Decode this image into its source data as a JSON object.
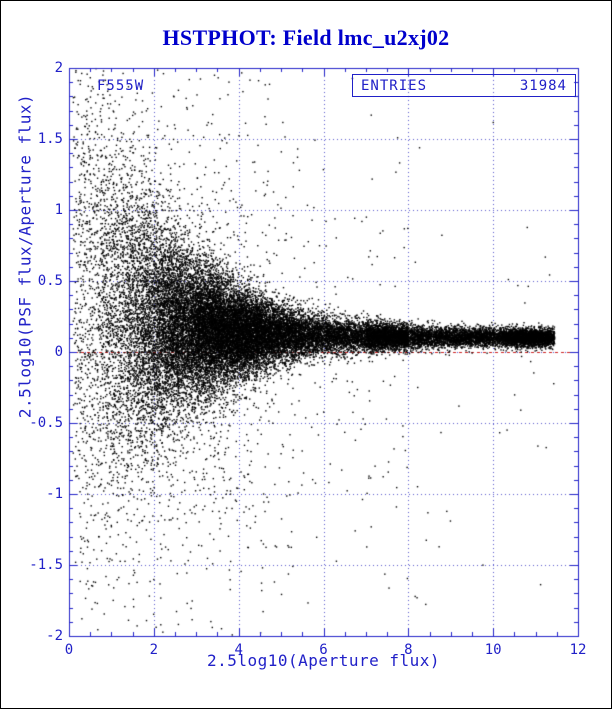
{
  "title": "HSTPHOT: Field lmc_u2xj02",
  "annotations": {
    "filter_label": "F555W",
    "stats_box": {
      "label": "ENTRIES",
      "value": "31984"
    }
  },
  "colors": {
    "title": "#0000cc",
    "axis": "#2121c8",
    "grid": "#5555cc",
    "points": "#000000",
    "zero_line": "#cc2222",
    "background": "#ffffff"
  },
  "chart_data": {
    "type": "scatter",
    "title": "HSTPHOT: Field lmc_u2xj02",
    "xlabel": "2.5log10(Aperture flux)",
    "ylabel": "2.5log10(PSF flux/Aperture flux)",
    "xlim": [
      0,
      12
    ],
    "ylim": [
      -2,
      2
    ],
    "xticks": [
      0,
      2,
      4,
      6,
      8,
      10,
      12
    ],
    "xtick_labels": [
      "0",
      "2",
      "4",
      "6",
      "8",
      "10",
      "12"
    ],
    "yticks": [
      -2,
      -1.5,
      -1,
      -0.5,
      0,
      0.5,
      1,
      1.5,
      2
    ],
    "ytick_labels": [
      "-2",
      "-1.5",
      "-1",
      "-0.5",
      "0",
      "0.5",
      "1",
      "1.5",
      "2"
    ],
    "grid": true,
    "legend_position": "none",
    "entries": 31984,
    "zero_line_y": 0,
    "series": [
      {
        "name": "F555W",
        "marker": "point",
        "color": "#000000",
        "n_points": 31984,
        "description": "Ratio 2.5log10(PSF flux/Aperture flux) vs 2.5log10(Aperture flux) for 31984 stars: wide +/-2 vertical scatter at faint fluxes (x about 2-3) funneling down to a tight horizontal band near y about +0.1 for x from 6 to 11.4, with sparse outliers (mostly downward) at intermediate fluxes; dashed red reference line at y=0.",
        "generator": {
          "seed": 20240601,
          "x_components": [
            {
              "dist": "gauss",
              "mean": 3.2,
              "sd": 1.25,
              "min": 0.15,
              "max": 11.5,
              "w": 0.5
            },
            {
              "dist": "uniform",
              "min": 3.0,
              "max": 8.0,
              "w": 0.22
            },
            {
              "dist": "uniform",
              "min": 7.0,
              "max": 11.45,
              "w": 0.18
            },
            {
              "dist": "gauss",
              "mean": 10.8,
              "sd": 0.33,
              "min": 9.8,
              "max": 11.45,
              "w": 0.04
            },
            {
              "dist": "uniform",
              "min": 0.1,
              "max": 2.6,
              "w": 0.06
            }
          ],
          "y_center": {
            "base": 0.1,
            "amp": 0.3,
            "scale": 2.0
          },
          "y_sigma": {
            "base": 0.028,
            "amp": 1.15,
            "scale": 1.85
          },
          "outliers": {
            "base": 0.16,
            "scale": 3.5,
            "sd": 0.95,
            "neg_frac": 0.6
          }
        }
      }
    ]
  }
}
